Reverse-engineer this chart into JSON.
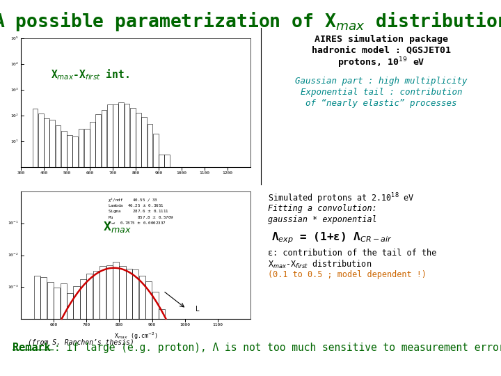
{
  "title": "A possible parametrization of X$_{max}$ distribution",
  "title_color": "#006600",
  "title_fontsize": 19,
  "background_color": "#ffffff",
  "top_left_label": "X$_{max}$-X$_{first}$ int.",
  "aires_line1": "AIRES simulation package",
  "aires_line2": "hadronic model : QGSJET01",
  "aires_line3": "protons, 10$^{19}$ eV",
  "gaussian_line1": "Gaussian part : high multiplicity",
  "exp_line1": "Exponential tail : contribution",
  "exp_line2": "of “nearly elastic” processes",
  "bottom_label": "X$_{max}$",
  "from_text": "(from S. Ranchon’s thesis)",
  "simulated_line": "Simulated protons at 2.10$^{18}$ eV",
  "fitting_line1": "Fitting a convolution:",
  "fitting_line2": "gaussian * exponential",
  "lambda_eq": "Λ$_{exp}$ = (1+ε) Λ$_{CR-air}$",
  "eps_line1": "ε: contribution of the tail of the",
  "eps_line2": "X$_{max}$-X$_{first}$ distribution",
  "model_line": "(0.1 to 0.5 ; model dependent !)",
  "remark_bold": "Remark",
  "remark_rest": ": if large (e.g. proton), Λ is not too much sensitive to measurement error…",
  "col_green": "#006600",
  "col_teal": "#008888",
  "col_red": "#cc0000",
  "col_black": "#000000",
  "col_orange": "#cc6600"
}
